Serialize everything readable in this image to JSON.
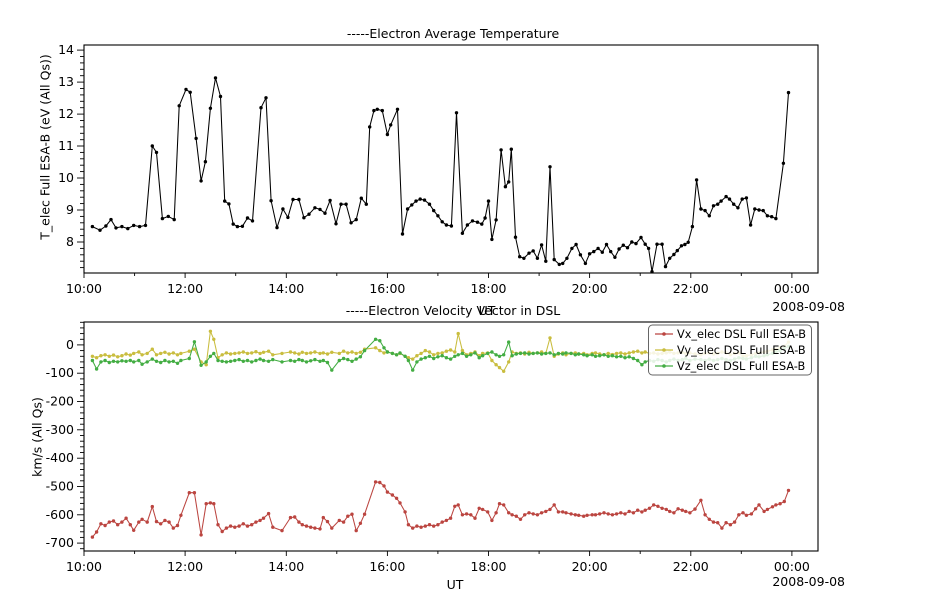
{
  "figure": {
    "background": "#ffffff",
    "axis_color": "#000000",
    "date_label": "2008-09-08"
  },
  "chart_data": [
    {
      "type": "line",
      "title": "-----Electron Average Temperature",
      "xlabel": "UT",
      "ylabel": "T_elec Full ESA-B (eV (All Qs))",
      "date_label": "2008-09-08",
      "xlim": [
        0,
        871
      ],
      "ylim": [
        7.03,
        14.16
      ],
      "yticks": [
        8,
        9,
        10,
        11,
        12,
        13,
        14
      ],
      "y_minor_step": 0.2,
      "x_minor_step": 60,
      "xticks": [
        {
          "t": 0,
          "label": "10:00"
        },
        {
          "t": 120,
          "label": "12:00"
        },
        {
          "t": 240,
          "label": "14:00"
        },
        {
          "t": 360,
          "label": "16:00"
        },
        {
          "t": 480,
          "label": "18:00"
        },
        {
          "t": 600,
          "label": "20:00"
        },
        {
          "t": 720,
          "label": "22:00"
        },
        {
          "t": 840,
          "label": "00:00"
        }
      ],
      "x_unit": "minutes after 10:00 UT",
      "grid": false,
      "legend": null,
      "series": [
        {
          "name": "T_elec Full ESA-B",
          "color": "#000000",
          "x": [
            10,
            19,
            26,
            32,
            38,
            45,
            52,
            59,
            66,
            73,
            81,
            86,
            93,
            100,
            107,
            113,
            121,
            126,
            133,
            139,
            144,
            150,
            156,
            162,
            167,
            172,
            177,
            182,
            188,
            194,
            200,
            210,
            216,
            222,
            229,
            236,
            242,
            248,
            255,
            261,
            267,
            274,
            280,
            286,
            292,
            299,
            305,
            311,
            317,
            323,
            329,
            335,
            339,
            344,
            348,
            354,
            360,
            364,
            372,
            378,
            384,
            389,
            394,
            399,
            404,
            410,
            415,
            420,
            425,
            430,
            436,
            442,
            449,
            455,
            461,
            467,
            472,
            476,
            480,
            484,
            489,
            495,
            500,
            504,
            507,
            512,
            517,
            522,
            528,
            533,
            538,
            543,
            548,
            553,
            558,
            564,
            568,
            573,
            579,
            584,
            589,
            595,
            600,
            605,
            610,
            615,
            620,
            625,
            630,
            635,
            640,
            645,
            650,
            655,
            661,
            666,
            670,
            674,
            680,
            686,
            690,
            695,
            700,
            704,
            709,
            713,
            717,
            722,
            727,
            732,
            737,
            742,
            747,
            752,
            756,
            762,
            766,
            771,
            776,
            781,
            786,
            791,
            796,
            801,
            806,
            811,
            816,
            821,
            830,
            836
          ],
          "y": [
            8.48,
            8.37,
            8.5,
            8.7,
            8.44,
            8.48,
            8.42,
            8.52,
            8.48,
            8.52,
            11.0,
            10.8,
            8.73,
            8.8,
            8.7,
            12.26,
            12.77,
            12.68,
            11.24,
            9.91,
            10.51,
            12.18,
            13.13,
            12.55,
            9.28,
            9.19,
            8.56,
            8.48,
            8.49,
            8.75,
            8.66,
            12.2,
            12.51,
            9.29,
            8.45,
            9.03,
            8.77,
            9.33,
            9.33,
            8.76,
            8.87,
            9.07,
            9.02,
            8.9,
            9.3,
            8.57,
            9.18,
            9.18,
            8.6,
            8.7,
            9.37,
            9.18,
            11.6,
            12.11,
            12.15,
            12.11,
            11.36,
            11.66,
            12.15,
            8.25,
            9.03,
            9.16,
            9.28,
            9.34,
            9.31,
            9.18,
            8.98,
            8.82,
            8.63,
            8.53,
            8.5,
            12.04,
            8.27,
            8.53,
            8.66,
            8.62,
            8.56,
            8.75,
            9.28,
            8.08,
            8.69,
            10.88,
            9.73,
            9.88,
            10.9,
            8.15,
            7.54,
            7.49,
            7.65,
            7.72,
            7.49,
            7.91,
            7.4,
            10.35,
            7.45,
            7.3,
            7.33,
            7.49,
            7.8,
            7.92,
            7.6,
            7.33,
            7.63,
            7.7,
            7.8,
            7.68,
            7.92,
            7.7,
            7.52,
            7.78,
            7.9,
            7.82,
            8.0,
            7.95,
            8.14,
            7.93,
            7.8,
            7.07,
            7.93,
            7.93,
            7.23,
            7.49,
            7.61,
            7.73,
            7.88,
            7.92,
            7.99,
            8.48,
            9.94,
            9.03,
            8.98,
            8.82,
            9.13,
            9.18,
            9.28,
            9.42,
            9.34,
            9.18,
            9.07,
            9.34,
            9.38,
            8.53,
            9.03,
            9.0,
            8.98,
            8.82,
            8.79,
            8.73,
            10.46,
            12.67
          ]
        }
      ]
    },
    {
      "type": "line",
      "title": "-----Electron Velocity Vector in DSL",
      "xlabel": "UT",
      "ylabel": "km/s (All Qs)",
      "date_label": "2008-09-08",
      "xlim": [
        0,
        871
      ],
      "ylim": [
        -728,
        81
      ],
      "yticks": [
        0,
        -100,
        -200,
        -300,
        -400,
        -500,
        -600,
        -700
      ],
      "y_minor_step": 20,
      "x_minor_step": 60,
      "xticks": [
        {
          "t": 0,
          "label": "10:00"
        },
        {
          "t": 120,
          "label": "12:00"
        },
        {
          "t": 240,
          "label": "14:00"
        },
        {
          "t": 360,
          "label": "16:00"
        },
        {
          "t": 480,
          "label": "18:00"
        },
        {
          "t": 600,
          "label": "20:00"
        },
        {
          "t": 720,
          "label": "22:00"
        },
        {
          "t": 840,
          "label": "00:00"
        }
      ],
      "x_unit": "minutes after 10:00 UT",
      "grid": false,
      "legend_entries": [
        "Vx_elec DSL Full ESA-B",
        "Vy_elec DSL Full ESA-B",
        "Vz_elec DSL Full ESA-B"
      ],
      "legend_position": "upper right",
      "x_shared": [
        10,
        15,
        20,
        25,
        30,
        35,
        40,
        45,
        50,
        55,
        59,
        65,
        69,
        75,
        81,
        86,
        91,
        96,
        101,
        106,
        111,
        115,
        125,
        131,
        139,
        145,
        150,
        154,
        159,
        164,
        169,
        174,
        179,
        184,
        189,
        194,
        199,
        204,
        209,
        213,
        219,
        224,
        235,
        245,
        250,
        255,
        259,
        264,
        269,
        274,
        280,
        284,
        289,
        294,
        303,
        308,
        313,
        318,
        323,
        328,
        333,
        346,
        351,
        356,
        360,
        366,
        371,
        375,
        381,
        385,
        390,
        395,
        400,
        405,
        410,
        415,
        420,
        425,
        430,
        435,
        440,
        444,
        449,
        454,
        459,
        464,
        469,
        473,
        479,
        484,
        489,
        493,
        498,
        504,
        508,
        513,
        518,
        523,
        528,
        533,
        538,
        543,
        548,
        553,
        558,
        563,
        568,
        572,
        578,
        583,
        587,
        593,
        597,
        603,
        607,
        612,
        617,
        622,
        627,
        632,
        637,
        642,
        647,
        652,
        657,
        662,
        666,
        671,
        676,
        681,
        686,
        691,
        695,
        700,
        705,
        710,
        714,
        719,
        725,
        732,
        737,
        742,
        747,
        752,
        757,
        762,
        767,
        772,
        777,
        782,
        786,
        792,
        797,
        801,
        807,
        811,
        817,
        821,
        826,
        831,
        836
      ],
      "series": [
        {
          "name": "Vx_elec DSL Full ESA-B",
          "color": "#bb4540",
          "y": [
            -679,
            -661,
            -632,
            -638,
            -626,
            -622,
            -635,
            -626,
            -612,
            -635,
            -655,
            -626,
            -616,
            -626,
            -571,
            -624,
            -632,
            -620,
            -626,
            -647,
            -638,
            -602,
            -522,
            -522,
            -671,
            -561,
            -558,
            -561,
            -635,
            -659,
            -647,
            -640,
            -644,
            -640,
            -632,
            -640,
            -635,
            -626,
            -620,
            -612,
            -596,
            -644,
            -656,
            -610,
            -608,
            -626,
            -635,
            -640,
            -644,
            -647,
            -650,
            -610,
            -624,
            -647,
            -620,
            -626,
            -605,
            -598,
            -656,
            -630,
            -598,
            -484,
            -486,
            -498,
            -520,
            -530,
            -542,
            -558,
            -590,
            -635,
            -647,
            -640,
            -644,
            -640,
            -635,
            -640,
            -635,
            -626,
            -620,
            -612,
            -570,
            -565,
            -600,
            -597,
            -600,
            -612,
            -577,
            -581,
            -590,
            -620,
            -593,
            -561,
            -565,
            -593,
            -600,
            -605,
            -616,
            -600,
            -593,
            -597,
            -600,
            -593,
            -588,
            -581,
            -565,
            -590,
            -590,
            -593,
            -597,
            -600,
            -602,
            -605,
            -602,
            -600,
            -600,
            -597,
            -593,
            -597,
            -600,
            -597,
            -593,
            -597,
            -588,
            -593,
            -584,
            -590,
            -584,
            -577,
            -565,
            -570,
            -577,
            -581,
            -588,
            -593,
            -579,
            -584,
            -588,
            -593,
            -580,
            -549,
            -600,
            -616,
            -626,
            -628,
            -647,
            -628,
            -635,
            -626,
            -600,
            -593,
            -602,
            -597,
            -579,
            -565,
            -588,
            -581,
            -572,
            -565,
            -561,
            -553,
            -514
          ]
        },
        {
          "name": "Vy_elec DSL Full ESA-B",
          "color": "#c9bd3f",
          "y": [
            -40,
            -45,
            -38,
            -35,
            -40,
            -36,
            -42,
            -38,
            -32,
            -36,
            -30,
            -25,
            -35,
            -30,
            -15,
            -35,
            -30,
            -26,
            -32,
            -28,
            -35,
            -30,
            -22,
            -15,
            -60,
            -70,
            48,
            20,
            -45,
            -35,
            -28,
            -32,
            -30,
            -28,
            -25,
            -30,
            -28,
            -24,
            -30,
            -26,
            -22,
            -35,
            -30,
            -25,
            -28,
            -32,
            -26,
            -30,
            -28,
            -25,
            -30,
            -28,
            -32,
            -26,
            -30,
            -22,
            -28,
            -25,
            -30,
            -26,
            -15,
            -10,
            -20,
            -28,
            -25,
            -30,
            -35,
            -30,
            -40,
            -45,
            -50,
            -38,
            -30,
            -20,
            -25,
            -35,
            -30,
            -28,
            -22,
            -18,
            -25,
            40,
            -20,
            -35,
            -30,
            -25,
            -38,
            -30,
            -28,
            -55,
            -70,
            -80,
            -93,
            -60,
            -25,
            -30,
            -28,
            -32,
            -26,
            -30,
            -28,
            -25,
            -30,
            25,
            -40,
            -32,
            -28,
            -35,
            -30,
            -28,
            -32,
            -30,
            -35,
            -30,
            -28,
            -32,
            -35,
            -30,
            -34,
            -30,
            -28,
            -32,
            -28,
            -25,
            -22,
            -28,
            -25,
            -30,
            -28,
            -32,
            -30,
            -28,
            -25,
            -30,
            -28,
            -26,
            -30,
            -28,
            -32,
            -35,
            -30,
            -28,
            -32,
            -30,
            -25,
            -28,
            -35,
            -30,
            -28,
            -40,
            -38,
            -35,
            -30,
            -28,
            -25,
            -22,
            -18,
            -15,
            -10,
            -5,
            10
          ]
        },
        {
          "name": "Vz_elec DSL Full ESA-B",
          "color": "#43ad43",
          "y": [
            -55,
            -85,
            -60,
            -55,
            -62,
            -58,
            -60,
            -56,
            -58,
            -55,
            -60,
            -55,
            -68,
            -60,
            -50,
            -58,
            -62,
            -55,
            -60,
            -58,
            -65,
            -55,
            -48,
            11,
            -72,
            -60,
            -40,
            -30,
            -55,
            -58,
            -60,
            -58,
            -55,
            -52,
            -58,
            -55,
            -60,
            -55,
            -50,
            -55,
            -58,
            -52,
            -60,
            -55,
            -58,
            -52,
            -55,
            -60,
            -56,
            -52,
            -58,
            -55,
            -62,
            -89,
            -55,
            -48,
            -52,
            -58,
            -50,
            -42,
            -20,
            20,
            15,
            -10,
            -25,
            -30,
            -35,
            -28,
            -40,
            -55,
            -89,
            -60,
            -50,
            -45,
            -40,
            -48,
            -42,
            -38,
            -45,
            -50,
            -40,
            -35,
            -30,
            -40,
            -35,
            -28,
            -45,
            -38,
            -30,
            -25,
            -35,
            -40,
            -35,
            10,
            -38,
            -32,
            -30,
            -28,
            -32,
            -30,
            -28,
            -32,
            -30,
            -28,
            -35,
            -30,
            -32,
            -28,
            -30,
            -35,
            -32,
            -35,
            -38,
            -35,
            -40,
            -38,
            -35,
            -40,
            -38,
            -42,
            -40,
            -45,
            -42,
            -48,
            -55,
            -70,
            -60,
            -55,
            -58,
            -52,
            -55,
            -60,
            -55,
            -50,
            -55,
            -52,
            -48,
            -55,
            -50,
            -52,
            -55,
            -50,
            -55,
            -52,
            -48,
            -52,
            -55,
            -50,
            -45,
            -48,
            -50,
            -45,
            -40,
            -42,
            -38,
            -35,
            -30,
            -25,
            -20,
            -12,
            -5
          ]
        }
      ]
    }
  ]
}
